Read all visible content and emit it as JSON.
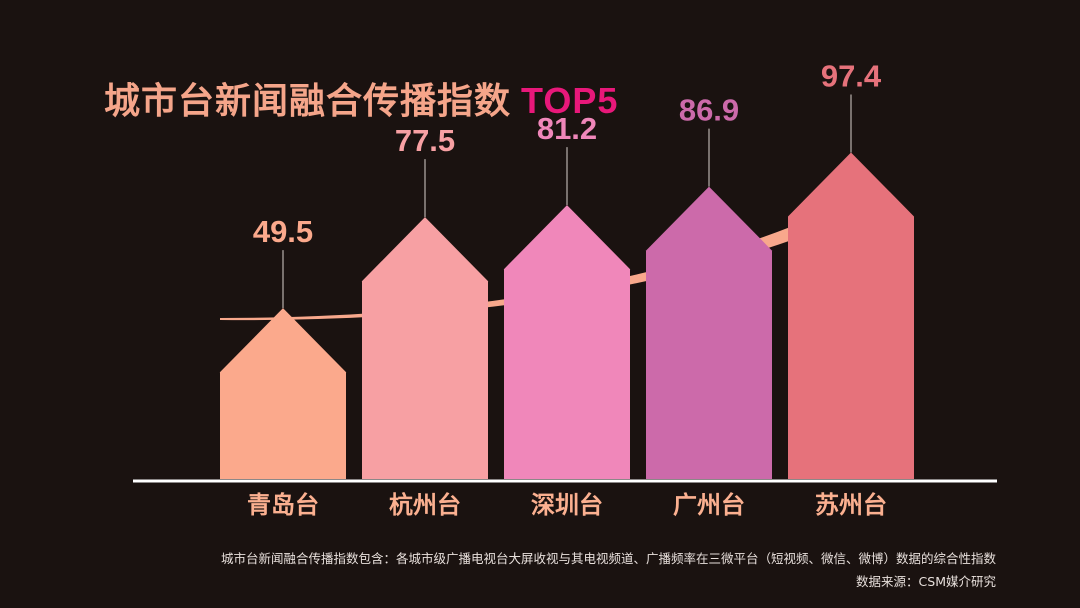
{
  "title": {
    "main": "城市台新闻融合传播指数",
    "accent": "TOP5"
  },
  "notes": {
    "definition": "城市台新闻融合传播指数包含：各城市级广播电视台大屏收视与其电视频道、广播频率在三微平台（短视频、微信、微博）数据的综合性指数",
    "source": "数据来源：CSM媒介研究"
  },
  "colors": {
    "title": "#f5a58a",
    "accent": "#e8187a",
    "baseline": "#ffffff",
    "arrow": "#f8a88c",
    "bars": [
      "#fba98c",
      "#f7a0a3",
      "#f087ba",
      "#cc6aaa",
      "#e6727b"
    ],
    "labels": [
      "#fba98c",
      "#f7a0a3",
      "#f087ba",
      "#cc6aaa",
      "#e6727b"
    ],
    "category_label": "#fbb090"
  },
  "chart_data": {
    "type": "bar",
    "title": "城市台新闻融合传播指数 TOP5",
    "categories": [
      "青岛台",
      "杭州台",
      "深圳台",
      "广州台",
      "苏州台"
    ],
    "values": [
      49.5,
      77.5,
      81.2,
      86.9,
      97.4
    ],
    "data_labels": [
      "49.5",
      "77.5",
      "81.2",
      "86.9",
      "97.4"
    ],
    "xlabel": "",
    "ylabel": "",
    "grid": false,
    "legend": "none",
    "annotation": "upward trend arrow"
  }
}
